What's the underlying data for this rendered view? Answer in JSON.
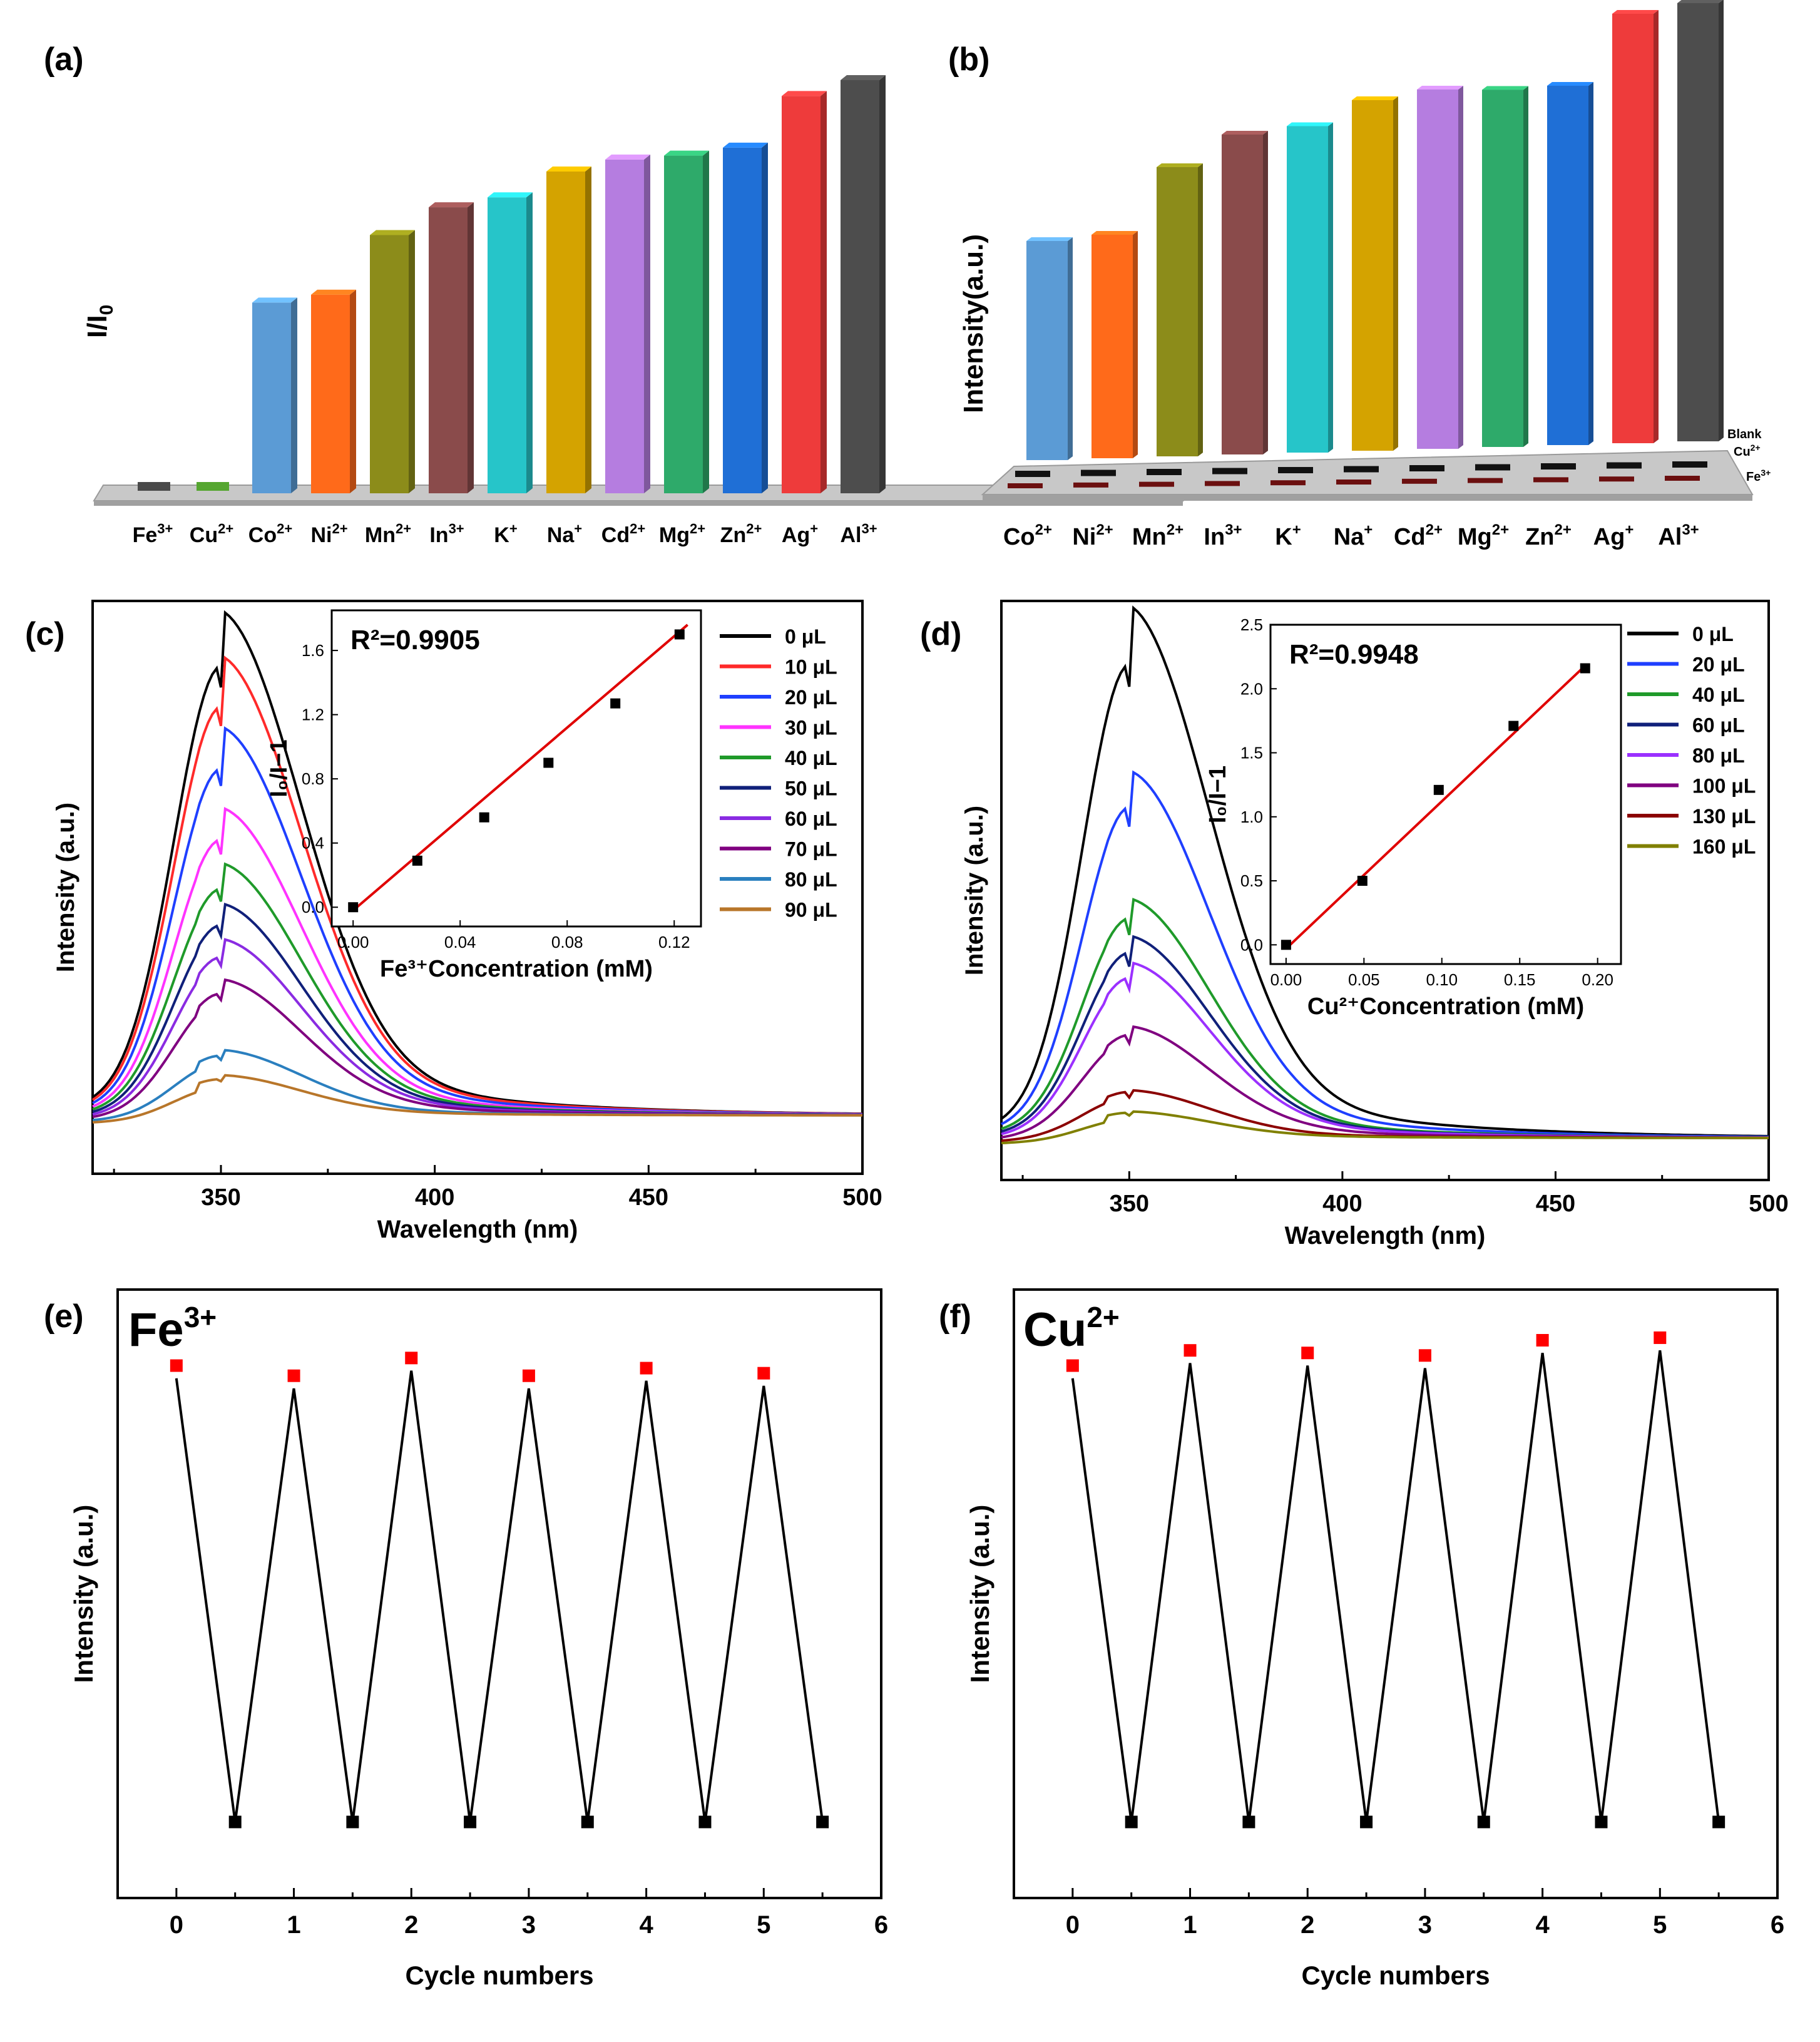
{
  "panels": {
    "a": {
      "label": "(a)",
      "ylabel": "I/I",
      "ylabel_sub": "0"
    },
    "b": {
      "label": "(b)",
      "ylabel": "Intensity(a.u.)",
      "depth_labels": [
        "Blank",
        "Cu",
        "Fe"
      ],
      "depth_sups": [
        "",
        "2+",
        "3+"
      ]
    },
    "c": {
      "label": "(c)"
    },
    "d": {
      "label": "(d)"
    },
    "e": {
      "label": "(e)",
      "title": "Fe",
      "title_sup": "3+"
    },
    "f": {
      "label": "(f)",
      "title": "Cu",
      "title_sup": "2+"
    }
  },
  "chart_data": [
    {
      "id": "a",
      "type": "bar",
      "title": "",
      "xlabel": "",
      "ylabel": "I/I0",
      "categories": [
        "Fe",
        "Cu",
        "Co",
        "Ni",
        "Mn",
        "In",
        "K",
        "Na",
        "Cd",
        "Mg",
        "Zn",
        "Ag",
        "Al"
      ],
      "category_sups": [
        "3+",
        "2+",
        "2+",
        "2+",
        "2+",
        "3+",
        "+",
        "+",
        "2+",
        "2+",
        "2+",
        "+",
        "3+"
      ],
      "values": [
        0.015,
        0.015,
        0.48,
        0.5,
        0.65,
        0.72,
        0.745,
        0.81,
        0.84,
        0.85,
        0.87,
        1.0,
        1.04
      ],
      "colors": [
        "#4a4a4a",
        "#55a630",
        "#5b9bd5",
        "#ff6a1a",
        "#8c8c1a",
        "#8a4b4b",
        "#26c5c9",
        "#d4a300",
        "#b57de0",
        "#2eaa6a",
        "#1f6fd6",
        "#ee3b3b",
        "#4d4d4d"
      ],
      "ylim": [
        0,
        1.1
      ]
    },
    {
      "id": "b",
      "type": "bar",
      "title": "",
      "xlabel": "",
      "ylabel": "Intensity(a.u.)",
      "categories": [
        "Co",
        "Ni",
        "Mn",
        "In",
        "K",
        "Na",
        "Cd",
        "Mg",
        "Zn",
        "Ag",
        "Al"
      ],
      "category_sups": [
        "2+",
        "2+",
        "2+",
        "3+",
        "+",
        "+",
        "2+",
        "2+",
        "2+",
        "+",
        "3+"
      ],
      "values": [
        0.5,
        0.51,
        0.66,
        0.73,
        0.745,
        0.8,
        0.82,
        0.815,
        0.82,
        0.98,
        1.0
      ],
      "colors": [
        "#5b9bd5",
        "#ff6a1a",
        "#8c8c1a",
        "#8a4b4b",
        "#26c5c9",
        "#d4a300",
        "#b57de0",
        "#2eaa6a",
        "#1f6fd6",
        "#ee3b3b",
        "#4d4d4d"
      ],
      "series": [
        "Blank",
        "Cu2+",
        "Fe3+"
      ],
      "ylim": [
        0,
        1.05
      ]
    },
    {
      "id": "c",
      "type": "line",
      "title": "",
      "xlabel": "Wavelength (nm)",
      "ylabel": "Intensity (a.u.)",
      "xlim": [
        320,
        500
      ],
      "xticks": [
        350,
        400,
        450,
        500
      ],
      "series": [
        {
          "name": "0 μL",
          "color": "#000000",
          "peak": 1.0
        },
        {
          "name": "10 μL",
          "color": "#ff2a2a",
          "peak": 0.91
        },
        {
          "name": "20 μL",
          "color": "#1f3fff",
          "peak": 0.77
        },
        {
          "name": "30 μL",
          "color": "#ff33ff",
          "peak": 0.61
        },
        {
          "name": "40 μL",
          "color": "#1f9a2a",
          "peak": 0.5
        },
        {
          "name": "50 μL",
          "color": "#10207a",
          "peak": 0.42
        },
        {
          "name": "60 μL",
          "color": "#8a2be2",
          "peak": 0.35
        },
        {
          "name": "70 μL",
          "color": "#800080",
          "peak": 0.27
        },
        {
          "name": "80 μL",
          "color": "#2a7fbf",
          "peak": 0.13
        },
        {
          "name": "90 μL",
          "color": "#b8762a",
          "peak": 0.08
        }
      ],
      "inset": {
        "annotation": "R²=0.9905",
        "xlabel": "Fe³⁺Concentration (mM)",
        "ylabel": "I₀/I−1",
        "x": [
          0.0,
          0.024,
          0.049,
          0.073,
          0.098,
          0.122
        ],
        "y": [
          0.0,
          0.29,
          0.56,
          0.9,
          1.27,
          1.7
        ],
        "fit": {
          "x0": 0.0,
          "y0": -0.02,
          "x1": 0.125,
          "y1": 1.76
        },
        "xticks": [
          "0.00",
          "0.04",
          "0.08",
          "0.12"
        ],
        "xtick_values": [
          0.0,
          0.04,
          0.08,
          0.12
        ],
        "yticks": [
          "0.0",
          "0.4",
          "0.8",
          "1.2",
          "1.6"
        ],
        "ytick_values": [
          0.0,
          0.4,
          0.8,
          1.2,
          1.6
        ],
        "xlim": [
          -0.008,
          0.13
        ],
        "ylim": [
          -0.12,
          1.85
        ]
      }
    },
    {
      "id": "d",
      "type": "line",
      "title": "",
      "xlabel": "Wavelength (nm)",
      "ylabel": "Intensity (a.u.)",
      "xlim": [
        320,
        500
      ],
      "xticks": [
        350,
        400,
        450,
        500
      ],
      "series": [
        {
          "name": "0 μL",
          "color": "#000000",
          "peak": 1.0
        },
        {
          "name": "20 μL",
          "color": "#1f3fff",
          "peak": 0.69
        },
        {
          "name": "40 μL",
          "color": "#1f9a2a",
          "peak": 0.45
        },
        {
          "name": "60 μL",
          "color": "#10207a",
          "peak": 0.38
        },
        {
          "name": "80 μL",
          "color": "#9b30ff",
          "peak": 0.33
        },
        {
          "name": "100 μL",
          "color": "#800080",
          "peak": 0.21
        },
        {
          "name": "130 μL",
          "color": "#8b0000",
          "peak": 0.09
        },
        {
          "name": "160 μL",
          "color": "#808000",
          "peak": 0.05
        }
      ],
      "inset": {
        "annotation": "R²=0.9948",
        "xlabel": "Cu²⁺Concentration (mM)",
        "ylabel": "I₀/I−1",
        "x": [
          0.0,
          0.049,
          0.098,
          0.146,
          0.192
        ],
        "y": [
          0.0,
          0.5,
          1.21,
          1.71,
          2.16
        ],
        "fit": {
          "x0": 0.0,
          "y0": -0.03,
          "x1": 0.192,
          "y1": 2.18
        },
        "xticks": [
          "0.00",
          "0.05",
          "0.10",
          "0.15",
          "0.20"
        ],
        "xtick_values": [
          0.0,
          0.05,
          0.1,
          0.15,
          0.2
        ],
        "yticks": [
          "0.0",
          "0.5",
          "1.0",
          "1.5",
          "2.0",
          "2.5"
        ],
        "ytick_values": [
          0.0,
          0.5,
          1.0,
          1.5,
          2.0,
          2.5
        ],
        "xlim": [
          -0.01,
          0.215
        ],
        "ylim": [
          -0.15,
          2.5
        ]
      }
    },
    {
      "id": "e",
      "type": "line",
      "title": "Fe3+",
      "xlabel": "Cycle numbers",
      "ylabel": "Intensity (a.u.)",
      "xlim": [
        -0.5,
        6
      ],
      "xticks": [
        0,
        1,
        2,
        3,
        4,
        5,
        6
      ],
      "x": [
        0,
        0.5,
        1,
        1.5,
        2,
        2.5,
        3,
        3.5,
        4,
        4.5,
        5,
        5.5
      ],
      "y": [
        0.93,
        0.03,
        0.91,
        0.03,
        0.945,
        0.03,
        0.91,
        0.03,
        0.925,
        0.03,
        0.915,
        0.03
      ],
      "high_color": "#ff0000",
      "low_color": "#000000",
      "ylim": [
        -0.12,
        1.08
      ]
    },
    {
      "id": "f",
      "type": "line",
      "title": "Cu2+",
      "xlabel": "Cycle numbers",
      "ylabel": "Intensity (a.u.)",
      "xlim": [
        -0.5,
        6
      ],
      "xticks": [
        0,
        1,
        2,
        3,
        4,
        5,
        6
      ],
      "x": [
        0,
        0.5,
        1,
        1.5,
        2,
        2.5,
        3,
        3.5,
        4,
        4.5,
        5,
        5.5
      ],
      "y": [
        0.93,
        0.03,
        0.96,
        0.03,
        0.955,
        0.03,
        0.95,
        0.03,
        0.98,
        0.03,
        0.985,
        0.03
      ],
      "high_color": "#ff0000",
      "low_color": "#000000",
      "ylim": [
        -0.12,
        1.08
      ]
    }
  ]
}
